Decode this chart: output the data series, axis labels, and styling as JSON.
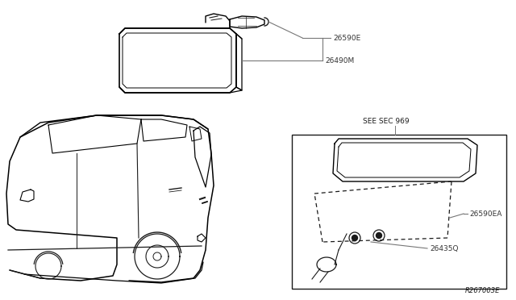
{
  "bg_color": "#ffffff",
  "line_color": "#1a1a1a",
  "label_color": "#333333",
  "gray_line": "#777777",
  "see_sec_text": "SEE SEC 969",
  "ref_text": "R267003E",
  "figsize": [
    6.4,
    3.72
  ],
  "dpi": 100,
  "label_26590E": "26590E",
  "label_26490M": "26490M",
  "label_26590EA": "26590EA",
  "label_26435Q": "26435Q"
}
